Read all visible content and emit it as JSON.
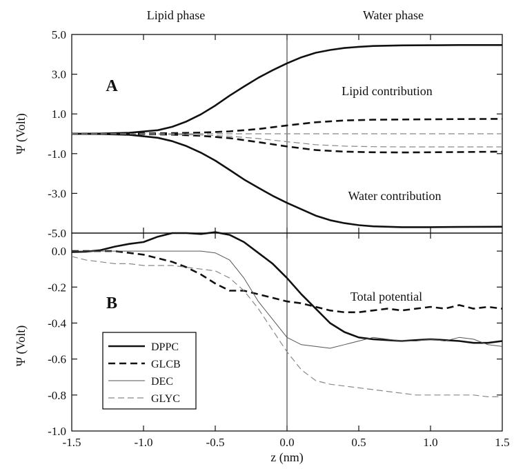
{
  "phase_labels": {
    "left": "Lipid phase",
    "right": "Water phase"
  },
  "xlabel": "z (nm)",
  "x_ticks": [
    "-1.5",
    "-1.0",
    "-0.5",
    "0.0",
    "0.5",
    "1.0",
    "1.5"
  ],
  "chart_data": [
    {
      "type": "line",
      "panel_label": "A",
      "ylabel": "Ψ (Volt)",
      "xlim": [
        -1.5,
        1.5
      ],
      "ylim": [
        -5.0,
        5.0
      ],
      "y_ticks": [
        "5.0",
        "3.0",
        "1.0",
        "-1.0",
        "-3.0",
        "-5.0"
      ],
      "vertical_line_x": 0.0,
      "annotations": [
        "Lipid contribution",
        "Water contribution"
      ],
      "grid": false,
      "series": [
        {
          "style": "solid-thick",
          "color": "#111111",
          "x": [
            -1.5,
            -1.3,
            -1.1,
            -0.9,
            -0.8,
            -0.7,
            -0.6,
            -0.5,
            -0.4,
            -0.3,
            -0.2,
            -0.1,
            0.0,
            0.1,
            0.2,
            0.3,
            0.4,
            0.5,
            0.6,
            0.8,
            1.0,
            1.2,
            1.5
          ],
          "y": [
            0.0,
            0.01,
            0.05,
            0.18,
            0.35,
            0.62,
            0.98,
            1.42,
            1.92,
            2.38,
            2.82,
            3.2,
            3.55,
            3.85,
            4.08,
            4.22,
            4.32,
            4.38,
            4.42,
            4.45,
            4.46,
            4.47,
            4.47
          ]
        },
        {
          "style": "solid-thick",
          "color": "#111111",
          "x": [
            -1.5,
            -1.3,
            -1.1,
            -0.9,
            -0.8,
            -0.7,
            -0.6,
            -0.5,
            -0.4,
            -0.3,
            -0.2,
            -0.1,
            0.0,
            0.1,
            0.2,
            0.3,
            0.4,
            0.5,
            0.6,
            0.8,
            1.0,
            1.2,
            1.5
          ],
          "y": [
            0.0,
            -0.01,
            -0.05,
            -0.2,
            -0.37,
            -0.62,
            -0.95,
            -1.35,
            -1.82,
            -2.3,
            -2.72,
            -3.12,
            -3.48,
            -3.8,
            -4.12,
            -4.35,
            -4.5,
            -4.6,
            -4.66,
            -4.7,
            -4.7,
            -4.69,
            -4.68
          ]
        },
        {
          "style": "dashed-thick",
          "color": "#111111",
          "x": [
            -1.5,
            -1.1,
            -0.8,
            -0.6,
            -0.4,
            -0.2,
            0.0,
            0.2,
            0.4,
            0.6,
            0.8,
            1.0,
            1.2,
            1.5
          ],
          "y": [
            0.0,
            0.01,
            0.03,
            0.06,
            0.12,
            0.24,
            0.42,
            0.58,
            0.67,
            0.71,
            0.72,
            0.73,
            0.74,
            0.75
          ]
        },
        {
          "style": "dashed-thick",
          "color": "#111111",
          "x": [
            -1.5,
            -1.1,
            -0.8,
            -0.6,
            -0.4,
            -0.2,
            0.0,
            0.2,
            0.4,
            0.6,
            0.8,
            1.0,
            1.2,
            1.5
          ],
          "y": [
            0.0,
            -0.01,
            -0.04,
            -0.1,
            -0.22,
            -0.42,
            -0.64,
            -0.82,
            -0.9,
            -0.93,
            -0.94,
            -0.93,
            -0.92,
            -0.9
          ]
        },
        {
          "style": "dashed-thin",
          "color": "#888888",
          "x": [
            -1.5,
            -1.0,
            -0.5,
            0.0,
            0.5,
            1.0,
            1.5
          ],
          "y": [
            0.0,
            0.0,
            0.0,
            0.0,
            0.0,
            0.0,
            0.0
          ]
        },
        {
          "style": "dashed-thin",
          "color": "#888888",
          "x": [
            -1.5,
            -1.1,
            -0.8,
            -0.6,
            -0.4,
            -0.2,
            0.0,
            0.2,
            0.4,
            0.6,
            0.8,
            1.0,
            1.2,
            1.5
          ],
          "y": [
            0.0,
            -0.01,
            -0.03,
            -0.06,
            -0.12,
            -0.24,
            -0.4,
            -0.55,
            -0.62,
            -0.65,
            -0.66,
            -0.66,
            -0.66,
            -0.66
          ]
        }
      ]
    },
    {
      "type": "line",
      "panel_label": "B",
      "ylabel": "Ψ (Volt)",
      "xlim": [
        -1.5,
        1.5
      ],
      "ylim": [
        -1.0,
        0.1
      ],
      "y_ticks": [
        "0.0",
        "-0.2",
        "-0.4",
        "-0.6",
        "-0.8",
        "-1.0"
      ],
      "vertical_line_x": 0.0,
      "annotations": [
        "Total potential"
      ],
      "grid": false,
      "legend_position": "bottom-left",
      "series": [
        {
          "name": "DPPC",
          "style": "solid-thick",
          "color": "#111111",
          "x": [
            -1.5,
            -1.4,
            -1.3,
            -1.2,
            -1.1,
            -1.0,
            -0.9,
            -0.8,
            -0.7,
            -0.6,
            -0.5,
            -0.4,
            -0.3,
            -0.2,
            -0.1,
            0.0,
            0.1,
            0.2,
            0.3,
            0.4,
            0.5,
            0.6,
            0.7,
            0.8,
            0.9,
            1.0,
            1.1,
            1.2,
            1.3,
            1.4,
            1.5
          ],
          "y": [
            -0.005,
            -0.003,
            0.005,
            0.025,
            0.04,
            0.05,
            0.08,
            0.1,
            0.1,
            0.095,
            0.105,
            0.09,
            0.05,
            -0.01,
            -0.07,
            -0.15,
            -0.24,
            -0.32,
            -0.4,
            -0.45,
            -0.48,
            -0.49,
            -0.495,
            -0.5,
            -0.495,
            -0.49,
            -0.495,
            -0.5,
            -0.51,
            -0.51,
            -0.5
          ]
        },
        {
          "name": "GLCB",
          "style": "dashed-thick",
          "color": "#111111",
          "x": [
            -1.5,
            -1.4,
            -1.3,
            -1.2,
            -1.1,
            -1.0,
            -0.9,
            -0.8,
            -0.7,
            -0.6,
            -0.5,
            -0.4,
            -0.3,
            -0.2,
            -0.1,
            0.0,
            0.1,
            0.2,
            0.3,
            0.4,
            0.5,
            0.6,
            0.7,
            0.8,
            0.9,
            1.0,
            1.1,
            1.2,
            1.3,
            1.4,
            1.5
          ],
          "y": [
            0.0,
            0.0,
            0.0,
            0.0,
            -0.01,
            -0.02,
            -0.04,
            -0.06,
            -0.09,
            -0.13,
            -0.18,
            -0.22,
            -0.22,
            -0.24,
            -0.26,
            -0.28,
            -0.29,
            -0.31,
            -0.33,
            -0.34,
            -0.34,
            -0.33,
            -0.32,
            -0.33,
            -0.32,
            -0.31,
            -0.32,
            -0.3,
            -0.32,
            -0.31,
            -0.32
          ]
        },
        {
          "name": "DEC",
          "style": "solid-thin",
          "color": "#555555",
          "x": [
            -1.5,
            -1.4,
            -1.3,
            -1.2,
            -1.1,
            -1.0,
            -0.9,
            -0.8,
            -0.7,
            -0.6,
            -0.5,
            -0.4,
            -0.3,
            -0.2,
            -0.1,
            0.0,
            0.1,
            0.2,
            0.3,
            0.4,
            0.5,
            0.6,
            0.7,
            0.8,
            0.9,
            1.0,
            1.1,
            1.2,
            1.3,
            1.4,
            1.5
          ],
          "y": [
            0.0,
            0.0,
            0.0,
            0.0,
            0.0,
            0.0,
            0.0,
            0.0,
            0.0,
            0.0,
            -0.01,
            -0.05,
            -0.15,
            -0.28,
            -0.38,
            -0.48,
            -0.52,
            -0.53,
            -0.54,
            -0.52,
            -0.5,
            -0.48,
            -0.49,
            -0.5,
            -0.5,
            -0.49,
            -0.5,
            -0.48,
            -0.49,
            -0.52,
            -0.53
          ]
        },
        {
          "name": "GLYC",
          "style": "dashed-thin",
          "color": "#888888",
          "x": [
            -1.5,
            -1.4,
            -1.3,
            -1.2,
            -1.1,
            -1.0,
            -0.9,
            -0.8,
            -0.7,
            -0.6,
            -0.5,
            -0.4,
            -0.3,
            -0.2,
            -0.1,
            0.0,
            0.1,
            0.2,
            0.3,
            0.4,
            0.5,
            0.6,
            0.7,
            0.8,
            0.9,
            1.0,
            1.1,
            1.2,
            1.3,
            1.4,
            1.5
          ],
          "y": [
            -0.03,
            -0.05,
            -0.06,
            -0.07,
            -0.07,
            -0.08,
            -0.08,
            -0.08,
            -0.09,
            -0.1,
            -0.11,
            -0.15,
            -0.22,
            -0.32,
            -0.44,
            -0.56,
            -0.66,
            -0.72,
            -0.74,
            -0.75,
            -0.76,
            -0.77,
            -0.78,
            -0.79,
            -0.8,
            -0.8,
            -0.8,
            -0.8,
            -0.8,
            -0.81,
            -0.81
          ]
        }
      ]
    }
  ]
}
